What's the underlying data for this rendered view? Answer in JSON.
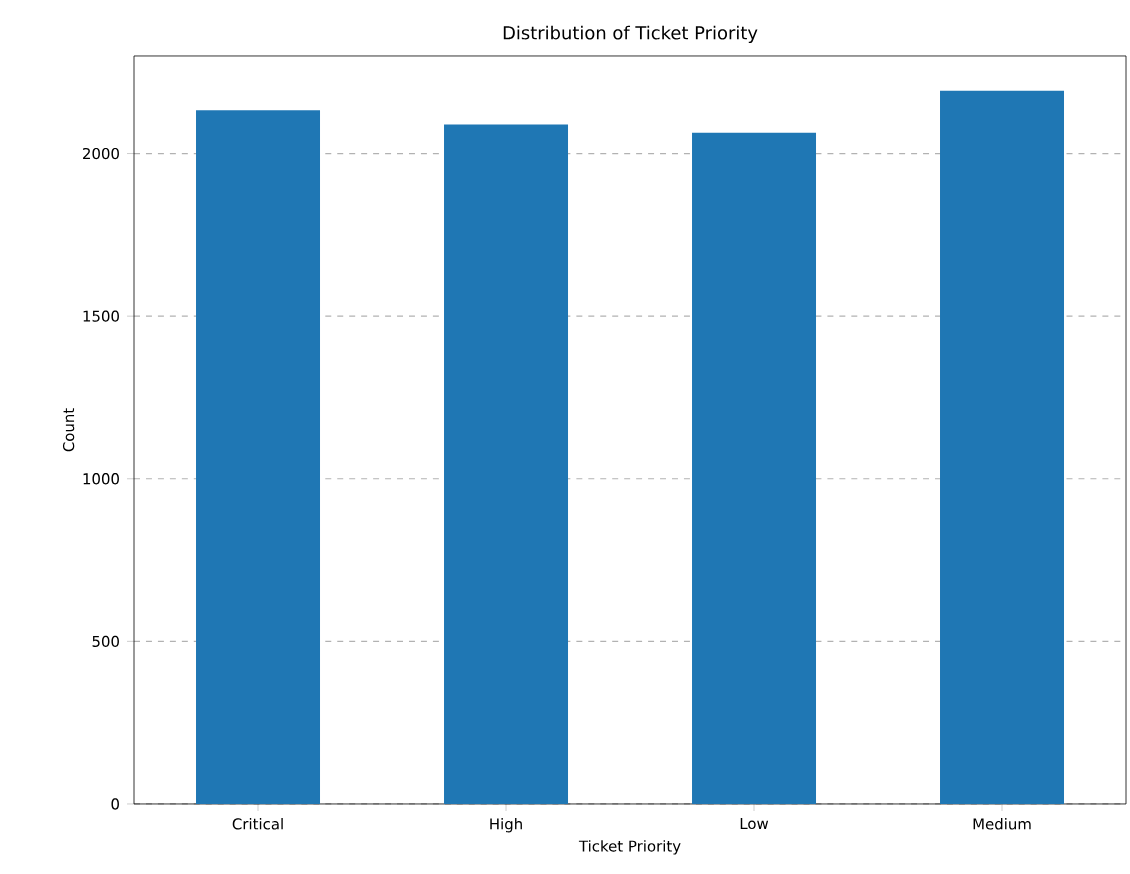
{
  "chart_data": {
    "type": "bar",
    "title": "Distribution of Ticket Priority",
    "xlabel": "Ticket Priority",
    "ylabel": "Count",
    "categories": [
      "Critical",
      "High",
      "Low",
      "Medium"
    ],
    "values": [
      2133,
      2089,
      2064,
      2193
    ],
    "color": "#1f77b4",
    "ylim": [
      0,
      2300
    ],
    "yticks": [
      0,
      500,
      1000,
      1500,
      2000
    ],
    "grid": "y"
  }
}
